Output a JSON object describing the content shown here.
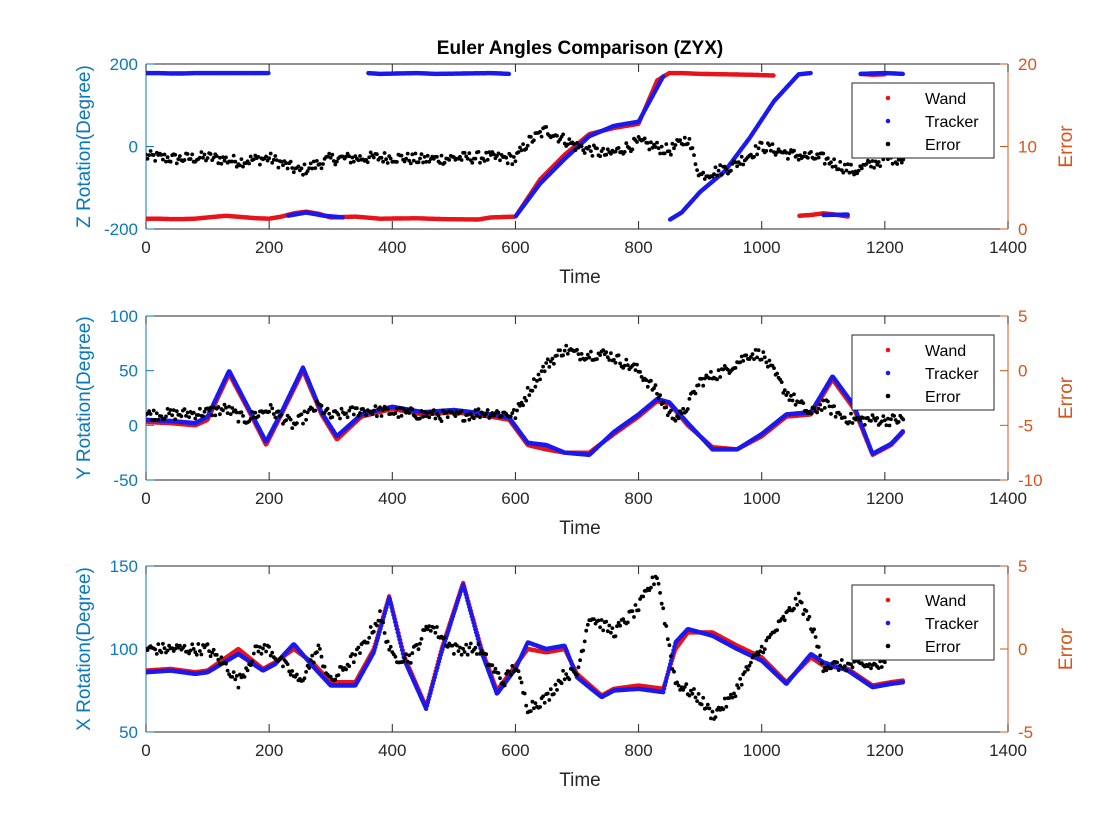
{
  "title": "Euler Angles Comparison (ZYX)",
  "colors": {
    "wand": "#e8141a",
    "tracker": "#1a1aef",
    "error": "#000000",
    "left_axis": "#0a78be",
    "right_axis": "#d9541a"
  },
  "chart_data": [
    {
      "type": "scatter",
      "title": "Euler Angles Comparison (ZYX)",
      "xlabel": "Time",
      "ylabel": "Z Rotation(Degree)",
      "ylabel_right": "Error",
      "xlim": [
        0,
        1400
      ],
      "ylim": [
        -200,
        200
      ],
      "ylim_right": [
        0,
        20
      ],
      "xticks": [
        "0",
        "200",
        "400",
        "600",
        "800",
        "1000",
        "1200",
        "1400"
      ],
      "yticks": [
        "-200",
        "0",
        "200"
      ],
      "yticks_right": [
        "0",
        "10",
        "20"
      ],
      "legend": [
        "Wand",
        "Tracker",
        "Error"
      ],
      "legend_position": "top-right",
      "series": [
        {
          "name": "Wand",
          "axis": "left",
          "x": [
            0,
            20,
            40,
            60,
            80,
            100,
            130,
            180,
            200,
            220,
            240,
            260,
            280,
            300,
            340,
            380,
            440,
            480,
            540,
            560,
            600,
            640,
            680,
            720,
            760,
            800,
            830,
            850,
            870,
            900,
            940,
            980,
            1020,
            1060,
            1080,
            1100,
            1120,
            1140,
            1160,
            1180,
            1200,
            1220
          ],
          "y": [
            -175,
            -175,
            -176,
            -176,
            -175,
            -172,
            -168,
            -174,
            -175,
            -170,
            -162,
            -158,
            -163,
            -172,
            -170,
            -175,
            -174,
            -176,
            -177,
            -172,
            -170,
            -80,
            -20,
            30,
            45,
            55,
            160,
            178,
            178,
            176,
            175,
            174,
            172,
            -168,
            -166,
            -162,
            -165,
            -170,
            176,
            174,
            175,
            -176
          ]
        },
        {
          "name": "Tracker",
          "axis": "left",
          "x": [
            0,
            20,
            40,
            60,
            80,
            100,
            130,
            200,
            230,
            260,
            290,
            320,
            360,
            380,
            440,
            470,
            520,
            560,
            590,
            600,
            640,
            680,
            720,
            760,
            800,
            840,
            850,
            870,
            900,
            940,
            980,
            1020,
            1060,
            1080,
            1100,
            1140,
            1160,
            1200,
            1230
          ],
          "y": [
            178,
            178,
            177,
            177,
            178,
            178,
            178,
            178,
            -168,
            -160,
            -168,
            -172,
            178,
            176,
            178,
            176,
            177,
            178,
            176,
            -170,
            -90,
            -30,
            25,
            50,
            60,
            170,
            -178,
            -160,
            -110,
            -60,
            20,
            110,
            175,
            178,
            -166,
            -165,
            176,
            178,
            176
          ]
        },
        {
          "name": "Error",
          "axis": "right",
          "x": [
            0,
            50,
            100,
            150,
            200,
            250,
            300,
            350,
            400,
            450,
            500,
            550,
            600,
            620,
            650,
            700,
            750,
            800,
            850,
            880,
            900,
            950,
            1000,
            1050,
            1100,
            1150,
            1200,
            1230
          ],
          "y": [
            8.8,
            8.5,
            8.7,
            8.2,
            8.6,
            7.0,
            8.5,
            8.6,
            8.7,
            8.4,
            8.6,
            8.7,
            8.5,
            10.5,
            12.0,
            10.0,
            9.0,
            10.5,
            9.5,
            11.0,
            6.5,
            7.5,
            10.0,
            9.0,
            8.5,
            7.0,
            8.5,
            8.6
          ]
        }
      ]
    },
    {
      "type": "scatter",
      "xlabel": "Time",
      "ylabel": "Y Rotation(Degree)",
      "ylabel_right": "Error",
      "xlim": [
        0,
        1400
      ],
      "ylim": [
        -50,
        100
      ],
      "ylim_right": [
        -10,
        5
      ],
      "xticks": [
        "0",
        "200",
        "400",
        "600",
        "800",
        "1000",
        "1200",
        "1400"
      ],
      "yticks": [
        "-50",
        "0",
        "50",
        "100"
      ],
      "yticks_right": [
        "-10",
        "-5",
        "0",
        "5"
      ],
      "legend": [
        "Wand",
        "Tracker",
        "Error"
      ],
      "legend_position": "top-right",
      "series": [
        {
          "name": "Wand",
          "axis": "left",
          "x": [
            0,
            40,
            80,
            100,
            135,
            170,
            195,
            220,
            255,
            285,
            310,
            350,
            400,
            450,
            500,
            560,
            590,
            620,
            650,
            680,
            720,
            760,
            800,
            830,
            850,
            880,
            920,
            960,
            1000,
            1040,
            1080,
            1115,
            1150,
            1180,
            1210,
            1230
          ],
          "y": [
            3,
            2,
            0,
            5,
            47,
            10,
            -18,
            10,
            50,
            10,
            -13,
            8,
            15,
            10,
            12,
            8,
            5,
            -18,
            -22,
            -25,
            -25,
            -8,
            8,
            22,
            20,
            0,
            -20,
            -22,
            -10,
            8,
            10,
            42,
            15,
            -27,
            -18,
            -6
          ]
        },
        {
          "name": "Tracker",
          "axis": "left",
          "x": [
            0,
            40,
            80,
            100,
            135,
            170,
            195,
            220,
            255,
            285,
            310,
            350,
            400,
            450,
            500,
            560,
            590,
            620,
            650,
            680,
            720,
            760,
            800,
            830,
            850,
            880,
            920,
            960,
            1000,
            1040,
            1080,
            1115,
            1150,
            1180,
            1210,
            1230
          ],
          "y": [
            5,
            4,
            2,
            8,
            50,
            12,
            -15,
            12,
            53,
            12,
            -10,
            10,
            17,
            12,
            14,
            10,
            7,
            -16,
            -18,
            -25,
            -27,
            -6,
            10,
            24,
            21,
            2,
            -22,
            -22,
            -8,
            10,
            12,
            45,
            18,
            -26,
            -17,
            -5
          ]
        },
        {
          "name": "Error",
          "axis": "right",
          "x": [
            0,
            50,
            100,
            130,
            160,
            200,
            240,
            280,
            300,
            350,
            400,
            450,
            500,
            550,
            600,
            620,
            650,
            680,
            700,
            750,
            800,
            830,
            850,
            870,
            900,
            940,
            980,
            1000,
            1040,
            1080,
            1100,
            1130,
            1150,
            1200,
            1230
          ],
          "y": [
            -4,
            -4,
            -3.8,
            -3.5,
            -4.5,
            -3.5,
            -5,
            -3.2,
            -4.2,
            -3.6,
            -3.8,
            -4,
            -4.2,
            -3.8,
            -4,
            -2,
            0.5,
            2,
            1.5,
            1.5,
            0,
            -2,
            -4,
            -4.2,
            -1,
            0,
            1.5,
            1.5,
            -2,
            -4,
            -3,
            -4.2,
            -4.5,
            -4.5,
            -4.5
          ]
        }
      ]
    },
    {
      "type": "scatter",
      "xlabel": "Time",
      "ylabel": "X Rotation(Degree)",
      "ylabel_right": "Error",
      "xlim": [
        0,
        1400
      ],
      "ylim": [
        50,
        150
      ],
      "ylim_right": [
        -5,
        5
      ],
      "xticks": [
        "0",
        "200",
        "400",
        "600",
        "800",
        "1000",
        "1200",
        "1400"
      ],
      "yticks": [
        "50",
        "100",
        "150"
      ],
      "yticks_right": [
        "-5",
        "0",
        "5"
      ],
      "legend": [
        "Wand",
        "Tracker",
        "Error"
      ],
      "legend_position": "top-right",
      "series": [
        {
          "name": "Wand",
          "axis": "left",
          "x": [
            0,
            40,
            80,
            100,
            150,
            190,
            210,
            240,
            270,
            300,
            340,
            370,
            395,
            420,
            455,
            480,
            515,
            545,
            570,
            600,
            620,
            650,
            680,
            700,
            740,
            760,
            800,
            840,
            860,
            880,
            920,
            960,
            1000,
            1040,
            1080,
            1100,
            1140,
            1180,
            1210,
            1230
          ],
          "y": [
            87,
            88,
            86,
            87,
            100,
            88,
            92,
            100,
            92,
            80,
            80,
            100,
            132,
            95,
            65,
            100,
            140,
            100,
            75,
            90,
            100,
            98,
            100,
            85,
            72,
            76,
            78,
            76,
            100,
            110,
            110,
            102,
            95,
            80,
            95,
            90,
            88,
            78,
            80,
            81
          ]
        },
        {
          "name": "Tracker",
          "axis": "left",
          "x": [
            0,
            40,
            80,
            100,
            150,
            190,
            210,
            240,
            270,
            300,
            340,
            370,
            395,
            420,
            455,
            480,
            515,
            545,
            570,
            600,
            620,
            650,
            680,
            700,
            740,
            760,
            800,
            840,
            860,
            880,
            920,
            960,
            1000,
            1040,
            1080,
            1100,
            1140,
            1180,
            1210,
            1230
          ],
          "y": [
            86,
            87,
            85,
            86,
            97,
            87,
            91,
            103,
            90,
            78,
            78,
            98,
            131,
            93,
            64,
            98,
            139,
            98,
            73,
            88,
            104,
            100,
            102,
            83,
            71,
            75,
            76,
            74,
            104,
            112,
            108,
            100,
            93,
            79,
            97,
            92,
            87,
            77,
            79,
            80
          ]
        },
        {
          "name": "Error",
          "axis": "right",
          "x": [
            0,
            50,
            100,
            130,
            150,
            180,
            200,
            250,
            280,
            300,
            350,
            380,
            400,
            430,
            460,
            500,
            540,
            580,
            600,
            620,
            650,
            680,
            700,
            720,
            760,
            800,
            830,
            860,
            880,
            900,
            920,
            950,
            980,
            1000,
            1040,
            1060,
            1080,
            1100,
            1140,
            1200
          ],
          "y": [
            0,
            0,
            0,
            -1,
            -2,
            0,
            0,
            -2,
            0,
            -2,
            0,
            2,
            -0.5,
            -0.5,
            1.5,
            0,
            0,
            -2,
            -1,
            -3.5,
            -3,
            -1.5,
            -1.5,
            2,
            1,
            2.5,
            4.5,
            -2,
            -2.5,
            -3,
            -4,
            -3,
            -1,
            0,
            2,
            3,
            1.5,
            -1,
            -1,
            -1
          ]
        }
      ]
    }
  ]
}
